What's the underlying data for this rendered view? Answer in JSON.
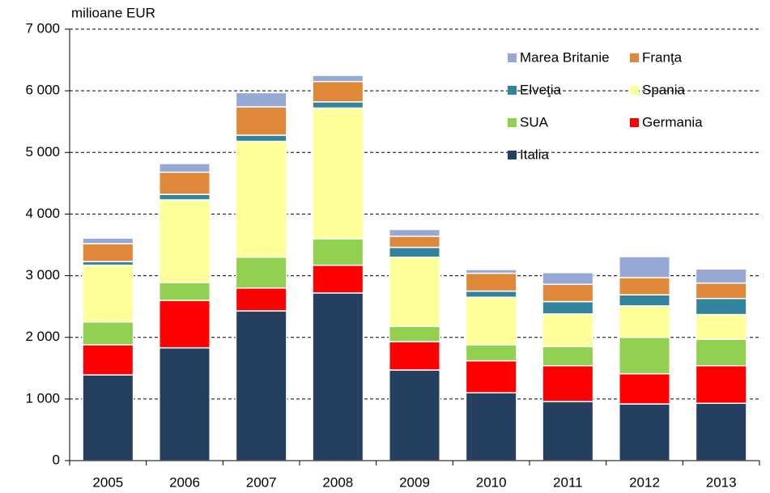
{
  "chart_data": {
    "type": "stacked_bar",
    "y_axis_label": "milioane EUR",
    "categories": [
      "2005",
      "2006",
      "2007",
      "2008",
      "2009",
      "2010",
      "2011",
      "2012",
      "2013"
    ],
    "series": [
      {
        "name": "Italia",
        "color": "#243f60",
        "values": [
          1390,
          1830,
          2430,
          2720,
          1470,
          1100,
          960,
          920,
          930
        ]
      },
      {
        "name": "Germania",
        "color": "#ff0000",
        "values": [
          490,
          770,
          370,
          450,
          460,
          520,
          580,
          490,
          610
        ]
      },
      {
        "name": "SUA",
        "color": "#92d050",
        "values": [
          370,
          290,
          500,
          430,
          250,
          260,
          310,
          590,
          430
        ]
      },
      {
        "name": "Spania",
        "color": "#ffff99",
        "values": [
          920,
          1340,
          1880,
          2120,
          1120,
          770,
          530,
          510,
          400
        ]
      },
      {
        "name": "Elveţia",
        "color": "#31849b",
        "values": [
          60,
          90,
          100,
          100,
          160,
          100,
          200,
          180,
          260
        ]
      },
      {
        "name": "Franţa",
        "color": "#e0883a",
        "values": [
          290,
          360,
          460,
          330,
          180,
          290,
          280,
          280,
          250
        ]
      },
      {
        "name": "Marea Britanie",
        "color": "#95a9d4",
        "values": [
          90,
          140,
          230,
          100,
          110,
          60,
          190,
          340,
          230
        ]
      }
    ],
    "ylim": [
      0,
      7000
    ],
    "yticks": [
      0,
      {
        "value": 1000,
        "label": "1 000"
      },
      {
        "value": 2000,
        "label": "2 000"
      },
      {
        "value": 3000,
        "label": "3 000"
      },
      {
        "value": 4000,
        "label": "4 000"
      },
      {
        "value": 5000,
        "label": "5 000"
      },
      {
        "value": 6000,
        "label": "6 000"
      },
      {
        "value": 7000,
        "label": "7 000"
      }
    ],
    "grid": true
  }
}
